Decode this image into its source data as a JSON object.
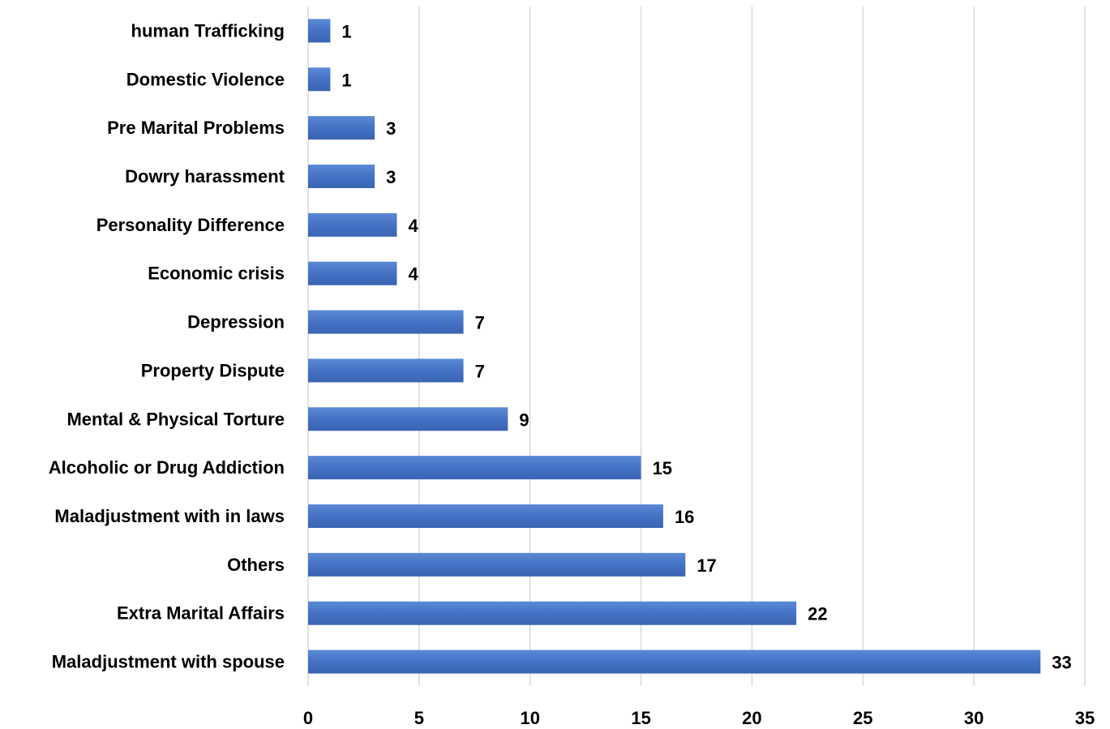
{
  "chart_data": {
    "type": "bar",
    "orientation": "horizontal",
    "categories": [
      "human Trafficking",
      "Domestic Violence",
      "Pre Marital Problems",
      "Dowry harassment",
      "Personality Difference",
      "Economic crisis",
      "Depression",
      "Property Dispute",
      "Mental & Physical Torture",
      "Alcoholic or Drug Addiction",
      "Maladjustment with in laws",
      "Others",
      "Extra Marital Affairs",
      "Maladjustment with spouse"
    ],
    "values": [
      1,
      1,
      3,
      3,
      4,
      4,
      7,
      7,
      9,
      15,
      16,
      17,
      22,
      33
    ],
    "data_labels": [
      "1",
      "1",
      "3",
      "3",
      "4",
      "4",
      "7",
      "7",
      "9",
      "15",
      "16",
      "17",
      "22",
      "33"
    ],
    "title": "",
    "xlabel": "",
    "ylabel": "",
    "xlim": [
      0,
      35
    ],
    "x_ticks": [
      0,
      5,
      10,
      15,
      20,
      25,
      30,
      35
    ],
    "x_tick_labels": [
      "0",
      "5",
      "10",
      "15",
      "20",
      "25",
      "30",
      "35"
    ],
    "grid": "vertical",
    "legend": "none",
    "bar_color": "#4472c4",
    "bar_color_light": "#5b8ad6",
    "bar_color_dark": "#3a64b3"
  }
}
